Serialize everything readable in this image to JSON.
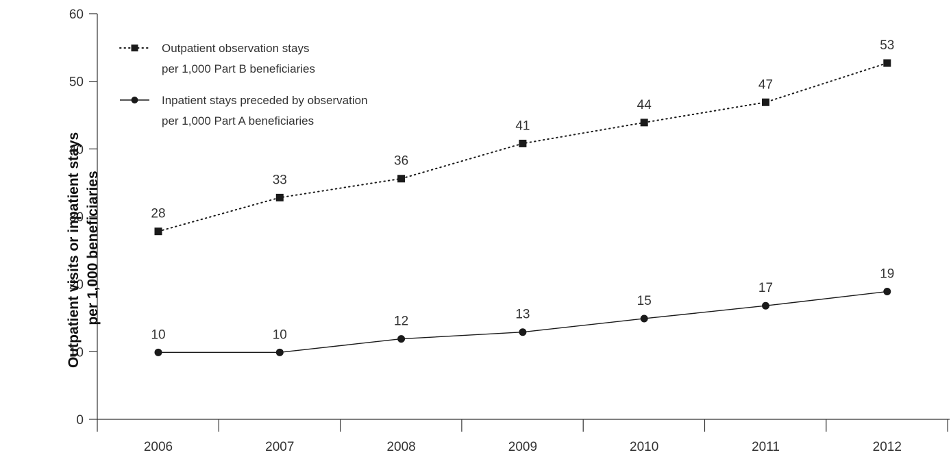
{
  "chart_data": {
    "type": "line",
    "title": "",
    "xlabel": "",
    "ylabel": [
      "Outpatient visits or inpatient stays",
      "per 1,000 beneficiaries"
    ],
    "categories": [
      "2006",
      "2007",
      "2008",
      "2009",
      "2010",
      "2011",
      "2012"
    ],
    "ylim": [
      0,
      60
    ],
    "yticks": [
      0,
      10,
      20,
      30,
      40,
      50,
      60
    ],
    "grid": false,
    "legend_position": "top-left",
    "series": [
      {
        "name": [
          "Outpatient observation stays",
          "per 1,000 Part B beneficiaries"
        ],
        "values": [
          27.8,
          32.8,
          35.6,
          40.8,
          43.9,
          46.9,
          52.7
        ],
        "labels": [
          "28",
          "33",
          "36",
          "41",
          "44",
          "47",
          "53"
        ],
        "marker": "square",
        "line_style": "dotted",
        "color": "#1a1a1a"
      },
      {
        "name": [
          "Inpatient stays preceded by observation",
          "per 1,000 Part A beneficiaries"
        ],
        "values": [
          9.9,
          9.9,
          11.9,
          12.9,
          14.9,
          16.8,
          18.9
        ],
        "labels": [
          "10",
          "10",
          "12",
          "13",
          "15",
          "17",
          "19"
        ],
        "marker": "circle",
        "line_style": "solid",
        "color": "#1a1a1a"
      }
    ]
  }
}
